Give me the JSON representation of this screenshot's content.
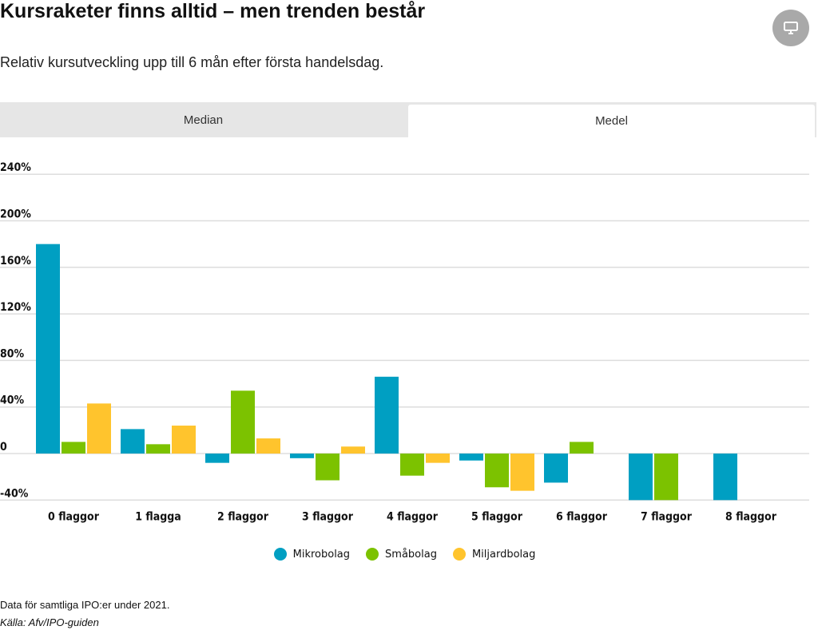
{
  "title": "Kursraketer finns alltid – men trenden består",
  "subtitle": "Relativ kursutveckling upp till 6 mån efter första handelsdag.",
  "tabs": [
    {
      "label": "Median",
      "active": false
    },
    {
      "label": "Medel",
      "active": true
    }
  ],
  "screen_icon": "monitor-icon",
  "note": "Data för samtliga IPO:er under 2021.",
  "source": "Källa: Afv/IPO-guiden",
  "chart_data": {
    "type": "bar",
    "categories": [
      "0 flaggor",
      "1 flagga",
      "2 flaggor",
      "3 flaggor",
      "4 flaggor",
      "5 flaggor",
      "6 flaggor",
      "7 flaggor",
      "8 flaggor"
    ],
    "series": [
      {
        "name": "Mikrobolag",
        "color": "#009fc2",
        "values": [
          180,
          21,
          -8,
          -4,
          66,
          -6,
          -25,
          -40,
          -40
        ]
      },
      {
        "name": "Småbolag",
        "color": "#7cc200",
        "values": [
          10,
          8,
          54,
          -23,
          -19,
          -29,
          10,
          -40,
          null
        ]
      },
      {
        "name": "Miljardbolag",
        "color": "#ffc42d",
        "values": [
          43,
          24,
          13,
          6,
          -8,
          -32,
          null,
          null,
          null
        ]
      }
    ],
    "yticks": [
      -40,
      0,
      40,
      80,
      120,
      160,
      200,
      240
    ],
    "ytick_labels": [
      "-40%",
      "0",
      "40%",
      "80%",
      "120%",
      "160%",
      "200%",
      "240%"
    ],
    "ylim": [
      -40,
      240
    ],
    "legend": "bottom-center"
  }
}
